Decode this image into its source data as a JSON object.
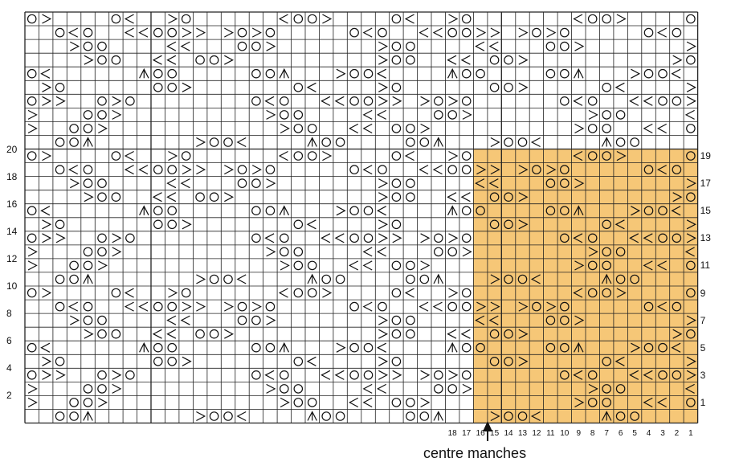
{
  "grid": {
    "cols": 48,
    "rows": 30
  },
  "highlight": {
    "color": "#f6c777",
    "cols": 16,
    "rows": 20
  },
  "symbols_legend": {
    "O": "yarn over",
    "/": "right-leaning decrease",
    "\\": "left-leaning decrease",
    "^": "double decrease"
  },
  "pattern": [
    "O\\....O/..\\O....../OO\\....O/..\\O......./OO\\....O/..\\O......./O",
    "..O/O..//OO\\\\.\\O\\O.....O/O..//OO\\\\.\\O\\O.....O/O..//OO\\\\.\\O\\O",
    "...\\OO....//...OO\\.......\\OO....//...OO\\.......\\OO....//...OO\\",
    "....\\OO..//.OO\\..........\\OO..//.OO\\..........\\OO..//.OO\\....",
    "O/......^OO.....OO^...\\OO/....^OO....OO^...\\OO/....^OO.....OO^",
    ".\\O......OO\\.......O/....\\O......OO\\.....O/....\\O......OO\\..",
    "O\\\\..O\\O........O/O..//OO\\\\.\\O\\O......O/O..//OO\\\\.\\O\\O",
    "\\...OO\\..........\\OO....//...OO\\........\\OO....//...OO\\..",
    "\\..OO\\............\\OO..//.OO\\..........\\OO..//.OO\\....\\",
    "..OO^.......\\OO/....^OO....OO^...\\OO/....^OO....OO^......"
  ],
  "row_numbers_left": [
    "20",
    "18",
    "16",
    "14",
    "12",
    "10",
    "8",
    "6",
    "4",
    "2"
  ],
  "row_numbers_right": [
    "19",
    "17",
    "15",
    "13",
    "11",
    "9",
    "7",
    "5",
    "3",
    "1"
  ],
  "col_numbers": [
    "18",
    "17",
    "16",
    "15",
    "14",
    "13",
    "12",
    "11",
    "10",
    "9",
    "8",
    "7",
    "6",
    "5",
    "4",
    "3",
    "2",
    "1"
  ],
  "arrow_label": "centre manches"
}
